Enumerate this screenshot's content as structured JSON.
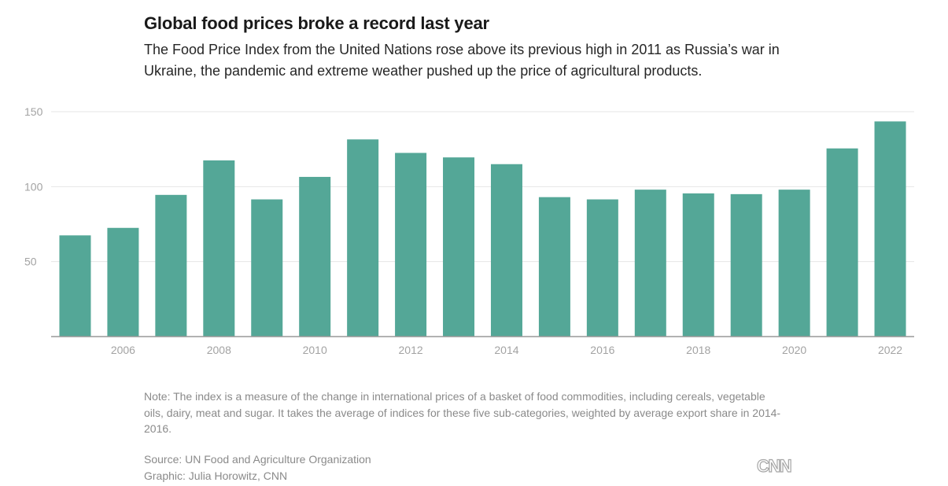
{
  "header": {
    "title": "Global food prices broke a record last year",
    "subtitle": "The Food Price Index from the United Nations rose above its previous high in 2011 as Russia’s war in Ukraine, the pandemic and extreme weather pushed up the price of agricultural products."
  },
  "chart_data": {
    "type": "bar",
    "title": "Global food prices broke a record last year",
    "xlabel": "",
    "ylabel": "",
    "categories": [
      "2005",
      "2006",
      "2007",
      "2008",
      "2009",
      "2010",
      "2011",
      "2012",
      "2013",
      "2014",
      "2015",
      "2016",
      "2017",
      "2018",
      "2019",
      "2020",
      "2021",
      "2022"
    ],
    "values": [
      67.5,
      72.5,
      94.5,
      117.5,
      91.5,
      106.5,
      131.5,
      122.5,
      119.5,
      115,
      93,
      91.5,
      98,
      95.5,
      95,
      98,
      125.5,
      143.5
    ],
    "x_tick_labels": [
      "2006",
      "2008",
      "2010",
      "2012",
      "2014",
      "2016",
      "2018",
      "2020",
      "2022"
    ],
    "y_ticks": [
      50,
      100,
      150
    ],
    "ylim": [
      0,
      150
    ],
    "grid": true,
    "bar_color": "#54a797",
    "grid_color": "#e6e6e6",
    "axis_color": "#999999"
  },
  "footer": {
    "note": "Note: The index is a measure of the change in international prices of a basket of food commodities, including cereals, vegetable oils, dairy, meat and sugar. It takes the average of indices for these five sub-categories, weighted by average export share in 2014-2016.",
    "source": "Source: UN Food and Agriculture Organization",
    "credit": "Graphic: Julia Horowitz, CNN",
    "logo": "CNN"
  }
}
